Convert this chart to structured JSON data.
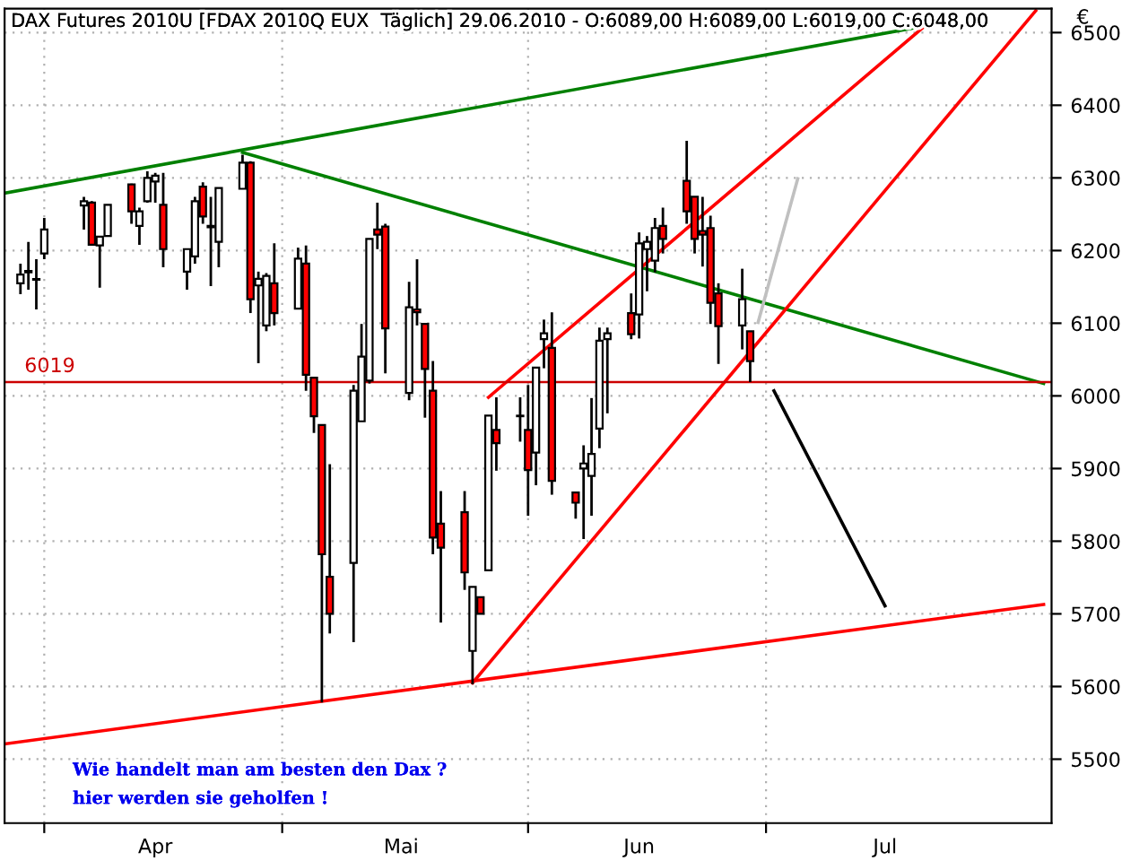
{
  "chart_data": {
    "type": "candlestick",
    "title": "DAX Futures 2010U [FDAX 2010Q EUX  Täglich] 29.06.2010 - O:6089,00 H:6089,00 L:6019,00 C:6048,00",
    "ylabel": "€",
    "x": [
      "2010-03-29",
      "2010-03-30",
      "2010-03-31",
      "2010-04-01",
      "2010-04-06",
      "2010-04-07",
      "2010-04-08",
      "2010-04-09",
      "2010-04-12",
      "2010-04-13",
      "2010-04-14",
      "2010-04-15",
      "2010-04-16",
      "2010-04-19",
      "2010-04-20",
      "2010-04-21",
      "2010-04-22",
      "2010-04-23",
      "2010-04-26",
      "2010-04-27",
      "2010-04-28",
      "2010-04-29",
      "2010-04-30",
      "2010-05-03",
      "2010-05-04",
      "2010-05-05",
      "2010-05-06",
      "2010-05-07",
      "2010-05-10",
      "2010-05-11",
      "2010-05-12",
      "2010-05-13",
      "2010-05-14",
      "2010-05-17",
      "2010-05-18",
      "2010-05-19",
      "2010-05-20",
      "2010-05-21",
      "2010-05-24",
      "2010-05-25",
      "2010-05-26",
      "2010-05-27",
      "2010-05-28",
      "2010-05-31",
      "2010-06-01",
      "2010-06-02",
      "2010-06-03",
      "2010-06-04",
      "2010-06-07",
      "2010-06-08",
      "2010-06-09",
      "2010-06-10",
      "2010-06-11",
      "2010-06-14",
      "2010-06-15",
      "2010-06-16",
      "2010-06-17",
      "2010-06-18",
      "2010-06-21",
      "2010-06-22",
      "2010-06-23",
      "2010-06-24",
      "2010-06-25",
      "2010-06-28",
      "2010-06-29"
    ],
    "ohlc": [
      [
        6155,
        6182,
        6140,
        6167
      ],
      [
        6172,
        6212,
        6146,
        6170
      ],
      [
        6160,
        6188,
        6119,
        6160
      ],
      [
        6196,
        6245,
        6188,
        6229
      ],
      [
        6262,
        6274,
        6229,
        6268
      ],
      [
        6266,
        6268,
        6208,
        6208
      ],
      [
        6207,
        6219,
        6149,
        6219
      ],
      [
        6220,
        6263,
        6220,
        6263
      ],
      [
        6291,
        6292,
        6237,
        6254
      ],
      [
        6234,
        6259,
        6208,
        6254
      ],
      [
        6268,
        6309,
        6266,
        6300
      ],
      [
        6295,
        6307,
        6266,
        6303
      ],
      [
        6263,
        6307,
        6177,
        6202
      ],
      [
        6171,
        6202,
        6146,
        6202
      ],
      [
        6192,
        6274,
        6182,
        6268
      ],
      [
        6288,
        6294,
        6237,
        6247
      ],
      [
        6234,
        6274,
        6151,
        6232
      ],
      [
        6212,
        6286,
        6177,
        6286
      ],
      [
        6285,
        6332,
        6285,
        6321
      ],
      [
        6321,
        6323,
        6114,
        6133
      ],
      [
        6152,
        6171,
        6045,
        6161
      ],
      [
        6097,
        6169,
        6089,
        6165
      ],
      [
        6155,
        6210,
        6097,
        6114
      ],
      [
        6120,
        6204,
        6120,
        6189
      ],
      [
        6182,
        6207,
        6007,
        6029
      ],
      [
        6025,
        6025,
        5949,
        5972
      ],
      [
        5960,
        5960,
        5578,
        5782
      ],
      [
        5751,
        5906,
        5673,
        5700
      ],
      [
        5770,
        6015,
        5661,
        6007
      ],
      [
        5965,
        6099,
        5965,
        6054
      ],
      [
        6021,
        6216,
        6017,
        6216
      ],
      [
        6229,
        6266,
        6202,
        6222
      ],
      [
        6233,
        6237,
        6031,
        6093
      ],
      [
        6004,
        6157,
        5994,
        6122
      ],
      [
        6119,
        6188,
        6097,
        6115
      ],
      [
        6099,
        6099,
        5970,
        6037
      ],
      [
        6007,
        6048,
        5782,
        5805
      ],
      [
        5824,
        5869,
        5688,
        5791
      ],
      [
        5840,
        5869,
        5733,
        5757
      ],
      [
        5649,
        5737,
        5603,
        5737
      ],
      [
        5723,
        5723,
        5700,
        5700
      ],
      [
        5760,
        5973,
        5760,
        5973
      ],
      [
        5953,
        5998,
        5897,
        5935
      ],
      [
        5972,
        5998,
        5937,
        5972
      ],
      [
        5953,
        6015,
        5835,
        5898
      ],
      [
        5922,
        6039,
        5877,
        6039
      ],
      [
        6078,
        6105,
        6038,
        6086
      ],
      [
        6066,
        6115,
        5864,
        5883
      ],
      [
        5867,
        5867,
        5831,
        5853
      ],
      [
        5900,
        5932,
        5803,
        5907
      ],
      [
        5890,
        5997,
        5835,
        5920
      ],
      [
        5955,
        6094,
        5928,
        6076
      ],
      [
        6078,
        6094,
        5976,
        6086
      ],
      [
        6114,
        6141,
        6078,
        6085
      ],
      [
        6112,
        6225,
        6079,
        6210
      ],
      [
        6202,
        6220,
        6144,
        6212
      ],
      [
        6186,
        6245,
        6170,
        6231
      ],
      [
        6234,
        6259,
        6196,
        6216
      ],
      [
        6296,
        6351,
        6237,
        6254
      ],
      [
        6274,
        6274,
        6196,
        6216
      ],
      [
        6227,
        6274,
        6178,
        6222
      ],
      [
        6231,
        6248,
        6099,
        6128
      ],
      [
        6141,
        6155,
        6044,
        6096
      ],
      [
        6097,
        6175,
        6064,
        6133
      ],
      [
        6089,
        6089,
        6019,
        6048
      ]
    ],
    "series": [
      {
        "type": "line",
        "color": "#008000",
        "x": [
          "2010-03-27",
          "2010-07-21"
        ],
        "values": [
          6279,
          6509
        ]
      },
      {
        "type": "line",
        "color": "#008000",
        "x": [
          "2010-04-26",
          "2010-08-05"
        ],
        "values": [
          6335,
          6017
        ]
      },
      {
        "type": "line",
        "color": "#ff0000",
        "x": [
          "2010-03-27",
          "2010-08-05"
        ],
        "values": [
          5521,
          5713
        ]
      },
      {
        "type": "line",
        "color": "#ff0000",
        "x": [
          "2010-05-25",
          "2010-08-04"
        ],
        "values": [
          5605,
          6530
        ]
      },
      {
        "type": "line",
        "color": "#ff0000",
        "x": [
          "2010-05-27",
          "2010-07-21"
        ],
        "values": [
          5998,
          6509
        ]
      },
      {
        "type": "line",
        "color": "#000000",
        "x": [
          "2010-07-02",
          "2010-07-16"
        ],
        "values": [
          6007,
          5711
        ]
      },
      {
        "type": "line",
        "color": "#c0c0c0",
        "x": [
          "2010-06-30",
          "2010-07-05"
        ],
        "values": [
          6101,
          6299
        ]
      }
    ],
    "ref_lines": [
      {
        "axis": "y",
        "value": 6019,
        "label": "6019",
        "color": "#cc0000"
      }
    ],
    "annotations": [
      "Wie handelt man am besten den Dax ?",
      "hier werden sie geholfen !"
    ],
    "xlim": [
      "2010-03-27",
      "2010-08-06"
    ],
    "xticks": [
      {
        "value": "2010-04-01",
        "label": null
      },
      {
        "value": "2010-05-01",
        "label": null
      },
      {
        "value": "2010-06-01",
        "label": null
      },
      {
        "value": "2010-07-01",
        "label": null
      },
      {
        "value": "2010-04-15",
        "label": "Apr"
      },
      {
        "value": "2010-05-16",
        "label": "Mai"
      },
      {
        "value": "2010-06-15",
        "label": "Jun"
      },
      {
        "value": "2010-07-16",
        "label": "Jul"
      }
    ],
    "ylim": [
      5412,
      6533
    ],
    "yticks": [
      5500,
      5600,
      5700,
      5800,
      5900,
      6000,
      6100,
      6200,
      6300,
      6400,
      6500
    ],
    "grid": true
  }
}
